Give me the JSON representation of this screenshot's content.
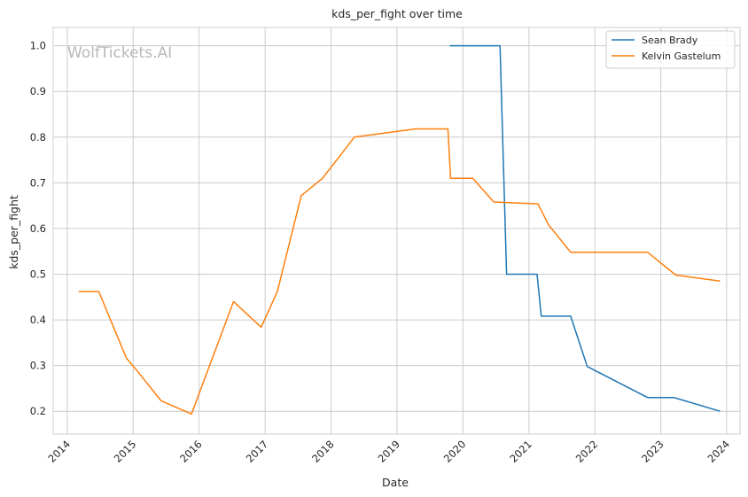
{
  "watermark": "WolfTickets.AI",
  "chart_data": {
    "type": "line",
    "title": "kds_per_fight over time",
    "xlabel": "Date",
    "ylabel": "kds_per_fight",
    "xlim": [
      "2013-10-15",
      "2024-03-15"
    ],
    "ylim": [
      0.15,
      1.04
    ],
    "x_ticks": [
      "2014",
      "2015",
      "2016",
      "2017",
      "2018",
      "2019",
      "2020",
      "2021",
      "2022",
      "2023",
      "2024"
    ],
    "y_ticks": [
      "0.2",
      "0.3",
      "0.4",
      "0.5",
      "0.6",
      "0.7",
      "0.8",
      "0.9",
      "1.0"
    ],
    "grid": true,
    "legend_position": "top-right",
    "series": [
      {
        "name": "Sean Brady",
        "color": "#1f77b4",
        "points": [
          [
            "2019-10-20",
            1.0
          ],
          [
            "2020-07-25",
            1.0
          ],
          [
            "2020-08-30",
            0.5
          ],
          [
            "2021-02-15",
            0.5
          ],
          [
            "2021-03-10",
            0.408
          ],
          [
            "2021-08-20",
            0.408
          ],
          [
            "2021-11-20",
            0.298
          ],
          [
            "2022-10-20",
            0.23
          ],
          [
            "2023-03-15",
            0.23
          ],
          [
            "2023-11-25",
            0.2
          ]
        ]
      },
      {
        "name": "Kelvin Gastelum",
        "color": "#ff7f0e",
        "points": [
          [
            "2014-03-05",
            0.462
          ],
          [
            "2014-06-25",
            0.462
          ],
          [
            "2014-11-25",
            0.316
          ],
          [
            "2015-01-20",
            0.29
          ],
          [
            "2015-06-05",
            0.223
          ],
          [
            "2015-11-20",
            0.194
          ],
          [
            "2016-07-10",
            0.44
          ],
          [
            "2016-12-10",
            0.384
          ],
          [
            "2017-03-10",
            0.462
          ],
          [
            "2017-07-20",
            0.672
          ],
          [
            "2017-11-15",
            0.71
          ],
          [
            "2018-05-10",
            0.8
          ],
          [
            "2019-04-15",
            0.818
          ],
          [
            "2019-10-10",
            0.818
          ],
          [
            "2019-10-25",
            0.71
          ],
          [
            "2020-02-25",
            0.71
          ],
          [
            "2020-06-20",
            0.658
          ],
          [
            "2021-02-20",
            0.654
          ],
          [
            "2021-04-20",
            0.608
          ],
          [
            "2021-08-20",
            0.548
          ],
          [
            "2022-10-20",
            0.548
          ],
          [
            "2023-03-25",
            0.498
          ],
          [
            "2023-11-25",
            0.485
          ]
        ]
      }
    ]
  }
}
